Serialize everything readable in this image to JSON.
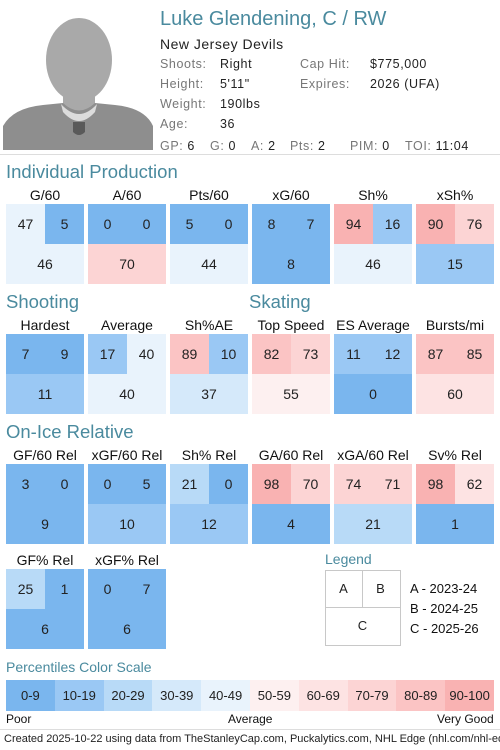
{
  "player": {
    "name": "Luke Glendening, C / RW",
    "team": "New Jersey Devils",
    "shoots_label": "Shoots:",
    "shoots": "Right",
    "height_label": "Height:",
    "height": "5'11\"",
    "weight_label": "Weight:",
    "weight": "190lbs",
    "age_label": "Age:",
    "age": "36",
    "caphit_label": "Cap Hit:",
    "caphit": "$775,000",
    "expires_label": "Expires:",
    "expires": "2026 (UFA)"
  },
  "stats_line": {
    "gp_label": "GP:",
    "gp": "6",
    "g_label": "G:",
    "g": "0",
    "a_label": "A:",
    "a": "2",
    "pts_label": "Pts:",
    "pts": "2",
    "pim_label": "PIM:",
    "pim": "0",
    "toi_label": "TOI:",
    "toi": "11:04"
  },
  "sections": {
    "individual": "Individual Production",
    "shooting": "Shooting",
    "skating": "Skating",
    "onice": "On-Ice Relative"
  },
  "colors": {
    "c0": "#7ab6ee",
    "c1": "#9ac8f4",
    "c2": "#b8daf7",
    "c3": "#d5e9fa",
    "c4": "#e9f3fc",
    "c5": "#fdf0f0",
    "c6": "#fde3e3",
    "c7": "#fcd4d4",
    "c8": "#fbc4c4",
    "c9": "#f9b2b2"
  },
  "tiles": [
    {
      "label": "G/60",
      "a": "47",
      "b": "5",
      "c": "46",
      "ca": "c4",
      "cb": "c0",
      "cc": "c4"
    },
    {
      "label": "A/60",
      "a": "0",
      "b": "0",
      "c": "70",
      "ca": "c0",
      "cb": "c0",
      "cc": "c7"
    },
    {
      "label": "Pts/60",
      "a": "5",
      "b": "0",
      "c": "44",
      "ca": "c0",
      "cb": "c0",
      "cc": "c4"
    },
    {
      "label": "xG/60",
      "a": "8",
      "b": "7",
      "c": "8",
      "ca": "c0",
      "cb": "c0",
      "cc": "c0"
    },
    {
      "label": "Sh%",
      "a": "94",
      "b": "16",
      "c": "46",
      "ca": "c9",
      "cb": "c1",
      "cc": "c4"
    },
    {
      "label": "xSh%",
      "a": "90",
      "b": "76",
      "c": "15",
      "ca": "c9",
      "cb": "c7",
      "cc": "c1"
    },
    {
      "label": "Hardest",
      "a": "7",
      "b": "9",
      "c": "11",
      "ca": "c0",
      "cb": "c0",
      "cc": "c1"
    },
    {
      "label": "Average",
      "a": "17",
      "b": "40",
      "c": "40",
      "ca": "c1",
      "cb": "c4",
      "cc": "c4"
    },
    {
      "label": "Sh%AE",
      "a": "89",
      "b": "10",
      "c": "37",
      "ca": "c8",
      "cb": "c1",
      "cc": "c3"
    },
    {
      "label": "Top Speed",
      "a": "82",
      "b": "73",
      "c": "55",
      "ca": "c8",
      "cb": "c7",
      "cc": "c5"
    },
    {
      "label": "ES Average",
      "a": "11",
      "b": "12",
      "c": "0",
      "ca": "c1",
      "cb": "c1",
      "cc": "c0"
    },
    {
      "label": "Bursts/mi",
      "a": "87",
      "b": "85",
      "c": "60",
      "ca": "c8",
      "cb": "c8",
      "cc": "c6"
    },
    {
      "label": "GF/60 Rel",
      "a": "3",
      "b": "0",
      "c": "9",
      "ca": "c0",
      "cb": "c0",
      "cc": "c0"
    },
    {
      "label": "xGF/60 Rel",
      "a": "0",
      "b": "5",
      "c": "10",
      "ca": "c0",
      "cb": "c0",
      "cc": "c1"
    },
    {
      "label": "Sh% Rel",
      "a": "21",
      "b": "0",
      "c": "12",
      "ca": "c2",
      "cb": "c0",
      "cc": "c1"
    },
    {
      "label": "GA/60 Rel",
      "a": "98",
      "b": "70",
      "c": "4",
      "ca": "c9",
      "cb": "c7",
      "cc": "c0"
    },
    {
      "label": "xGA/60 Rel",
      "a": "74",
      "b": "71",
      "c": "21",
      "ca": "c7",
      "cb": "c7",
      "cc": "c2"
    },
    {
      "label": "Sv% Rel",
      "a": "98",
      "b": "62",
      "c": "1",
      "ca": "c9",
      "cb": "c6",
      "cc": "c0"
    },
    {
      "label": "GF% Rel",
      "a": "25",
      "b": "1",
      "c": "6",
      "ca": "c2",
      "cb": "c0",
      "cc": "c0"
    },
    {
      "label": "xGF% Rel",
      "a": "0",
      "b": "7",
      "c": "6",
      "ca": "c0",
      "cb": "c0",
      "cc": "c0"
    }
  ],
  "legend": {
    "title": "Legend",
    "a": "A",
    "b": "B",
    "c": "C",
    "a_desc": "A - 2023-24",
    "b_desc": "B - 2024-25",
    "c_desc": "C - 2025-26"
  },
  "scale": {
    "title": "Percentiles Color Scale",
    "bins": [
      "0-9",
      "10-19",
      "20-29",
      "30-39",
      "40-49",
      "50-59",
      "60-69",
      "70-79",
      "80-89",
      "90-100"
    ],
    "poor": "Poor",
    "average": "Average",
    "very_good": "Very Good"
  },
  "footer": "Created 2025-10-22 using data from TheStanleyCap.com, Puckalytics.com, NHL Edge (nhl.com/nhl-edge)."
}
